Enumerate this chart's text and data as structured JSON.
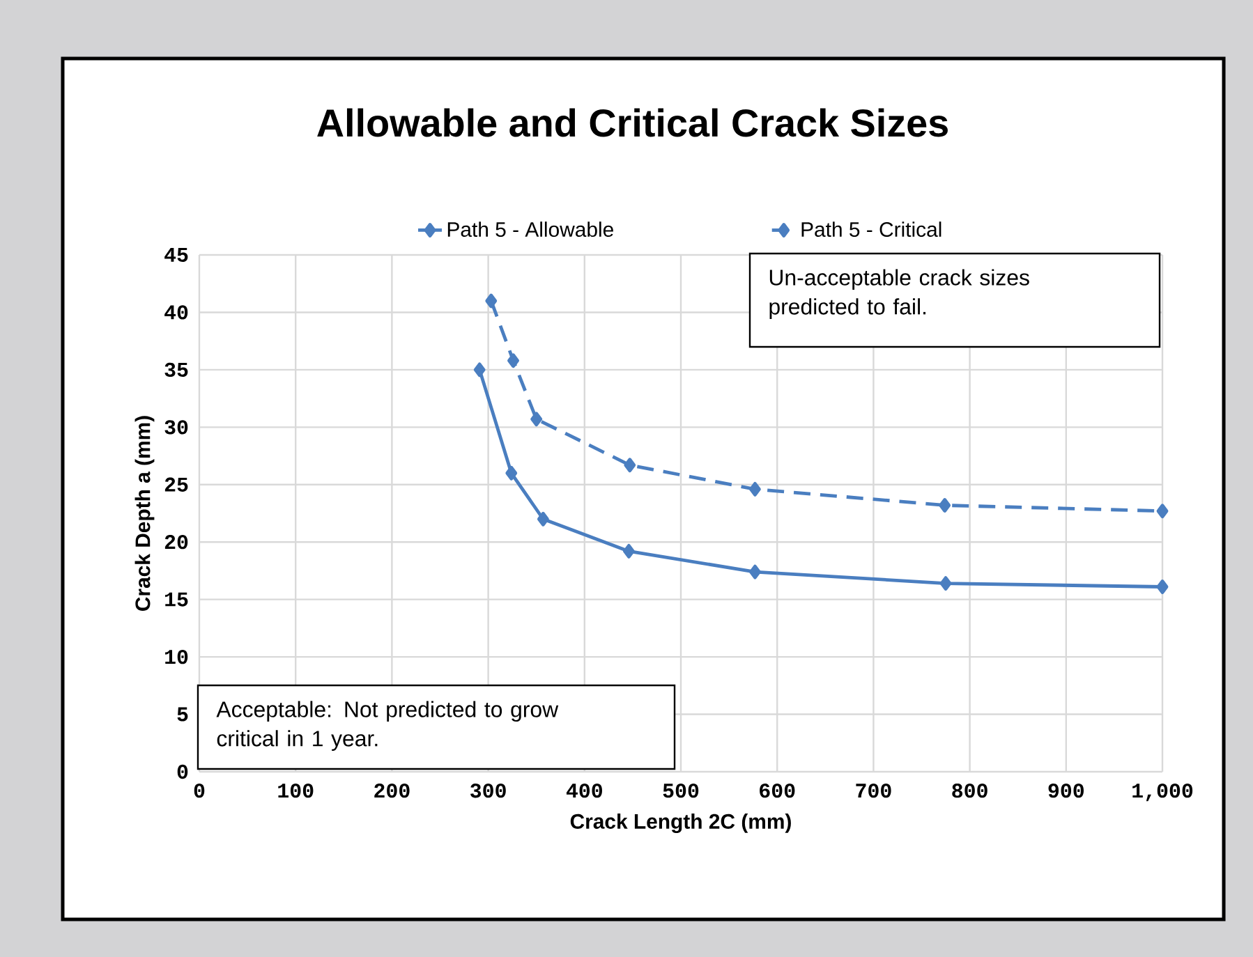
{
  "chart_data": {
    "type": "line",
    "title": "Allowable and Critical Crack Sizes",
    "xlabel": "Crack Length 2C (mm)",
    "ylabel": "Crack Depth a (mm)",
    "xlim": [
      0,
      1000
    ],
    "ylim": [
      0,
      45
    ],
    "xticks": [
      0,
      100,
      200,
      300,
      400,
      500,
      600,
      700,
      800,
      900,
      {
        "value": 1000,
        "label": "1,000"
      }
    ],
    "yticks": [
      0,
      5,
      10,
      15,
      20,
      25,
      30,
      35,
      40,
      45
    ],
    "grid": true,
    "legend": "top",
    "marker": "diamond",
    "series": [
      {
        "name": "Path 5 - Allowable",
        "color": "#4a7ec0",
        "line_style": "solid",
        "x": [
          291,
          324,
          357,
          446,
          577,
          775,
          1000
        ],
        "values": [
          35,
          26,
          22,
          19.2,
          17.4,
          16.4,
          16.1
        ]
      },
      {
        "name": "Path 5 - Critical",
        "color": "#4a7ec0",
        "line_style": "dashed",
        "x": [
          303,
          326,
          350,
          447,
          577,
          774,
          1000
        ],
        "values": [
          41,
          35.8,
          30.7,
          26.7,
          24.6,
          23.2,
          22.7
        ]
      }
    ],
    "annotations": [
      "Un-acceptable crack sizes predicted to fail.",
      "Acceptable: Not predicted to grow critical in 1 year."
    ]
  }
}
